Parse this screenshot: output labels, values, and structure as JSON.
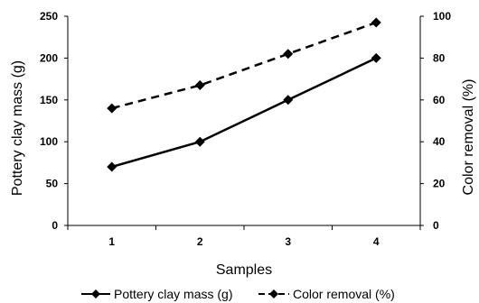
{
  "chart_data": {
    "type": "line",
    "x": [
      1,
      2,
      3,
      4
    ],
    "xlabel": "Samples",
    "ylabel_left": "Pottery clay mass (g)",
    "ylabel_right": "Color removal (%)",
    "ylim_left": [
      0,
      250
    ],
    "ylim_right": [
      0,
      100
    ],
    "yticks_left": [
      0,
      50,
      100,
      150,
      200,
      250
    ],
    "yticks_right": [
      0,
      20,
      40,
      60,
      80,
      100
    ],
    "grid": false,
    "legend_position": "bottom",
    "series": [
      {
        "name": "Pottery clay mass (g)",
        "axis": "left",
        "values": [
          70,
          100,
          150,
          200
        ],
        "line_style": "solid",
        "marker": "diamond",
        "color": "#000000"
      },
      {
        "name": "Color removal (%)",
        "axis": "right",
        "values": [
          56,
          67,
          82,
          97
        ],
        "line_style": "dashed",
        "marker": "diamond",
        "color": "#000000"
      }
    ]
  }
}
